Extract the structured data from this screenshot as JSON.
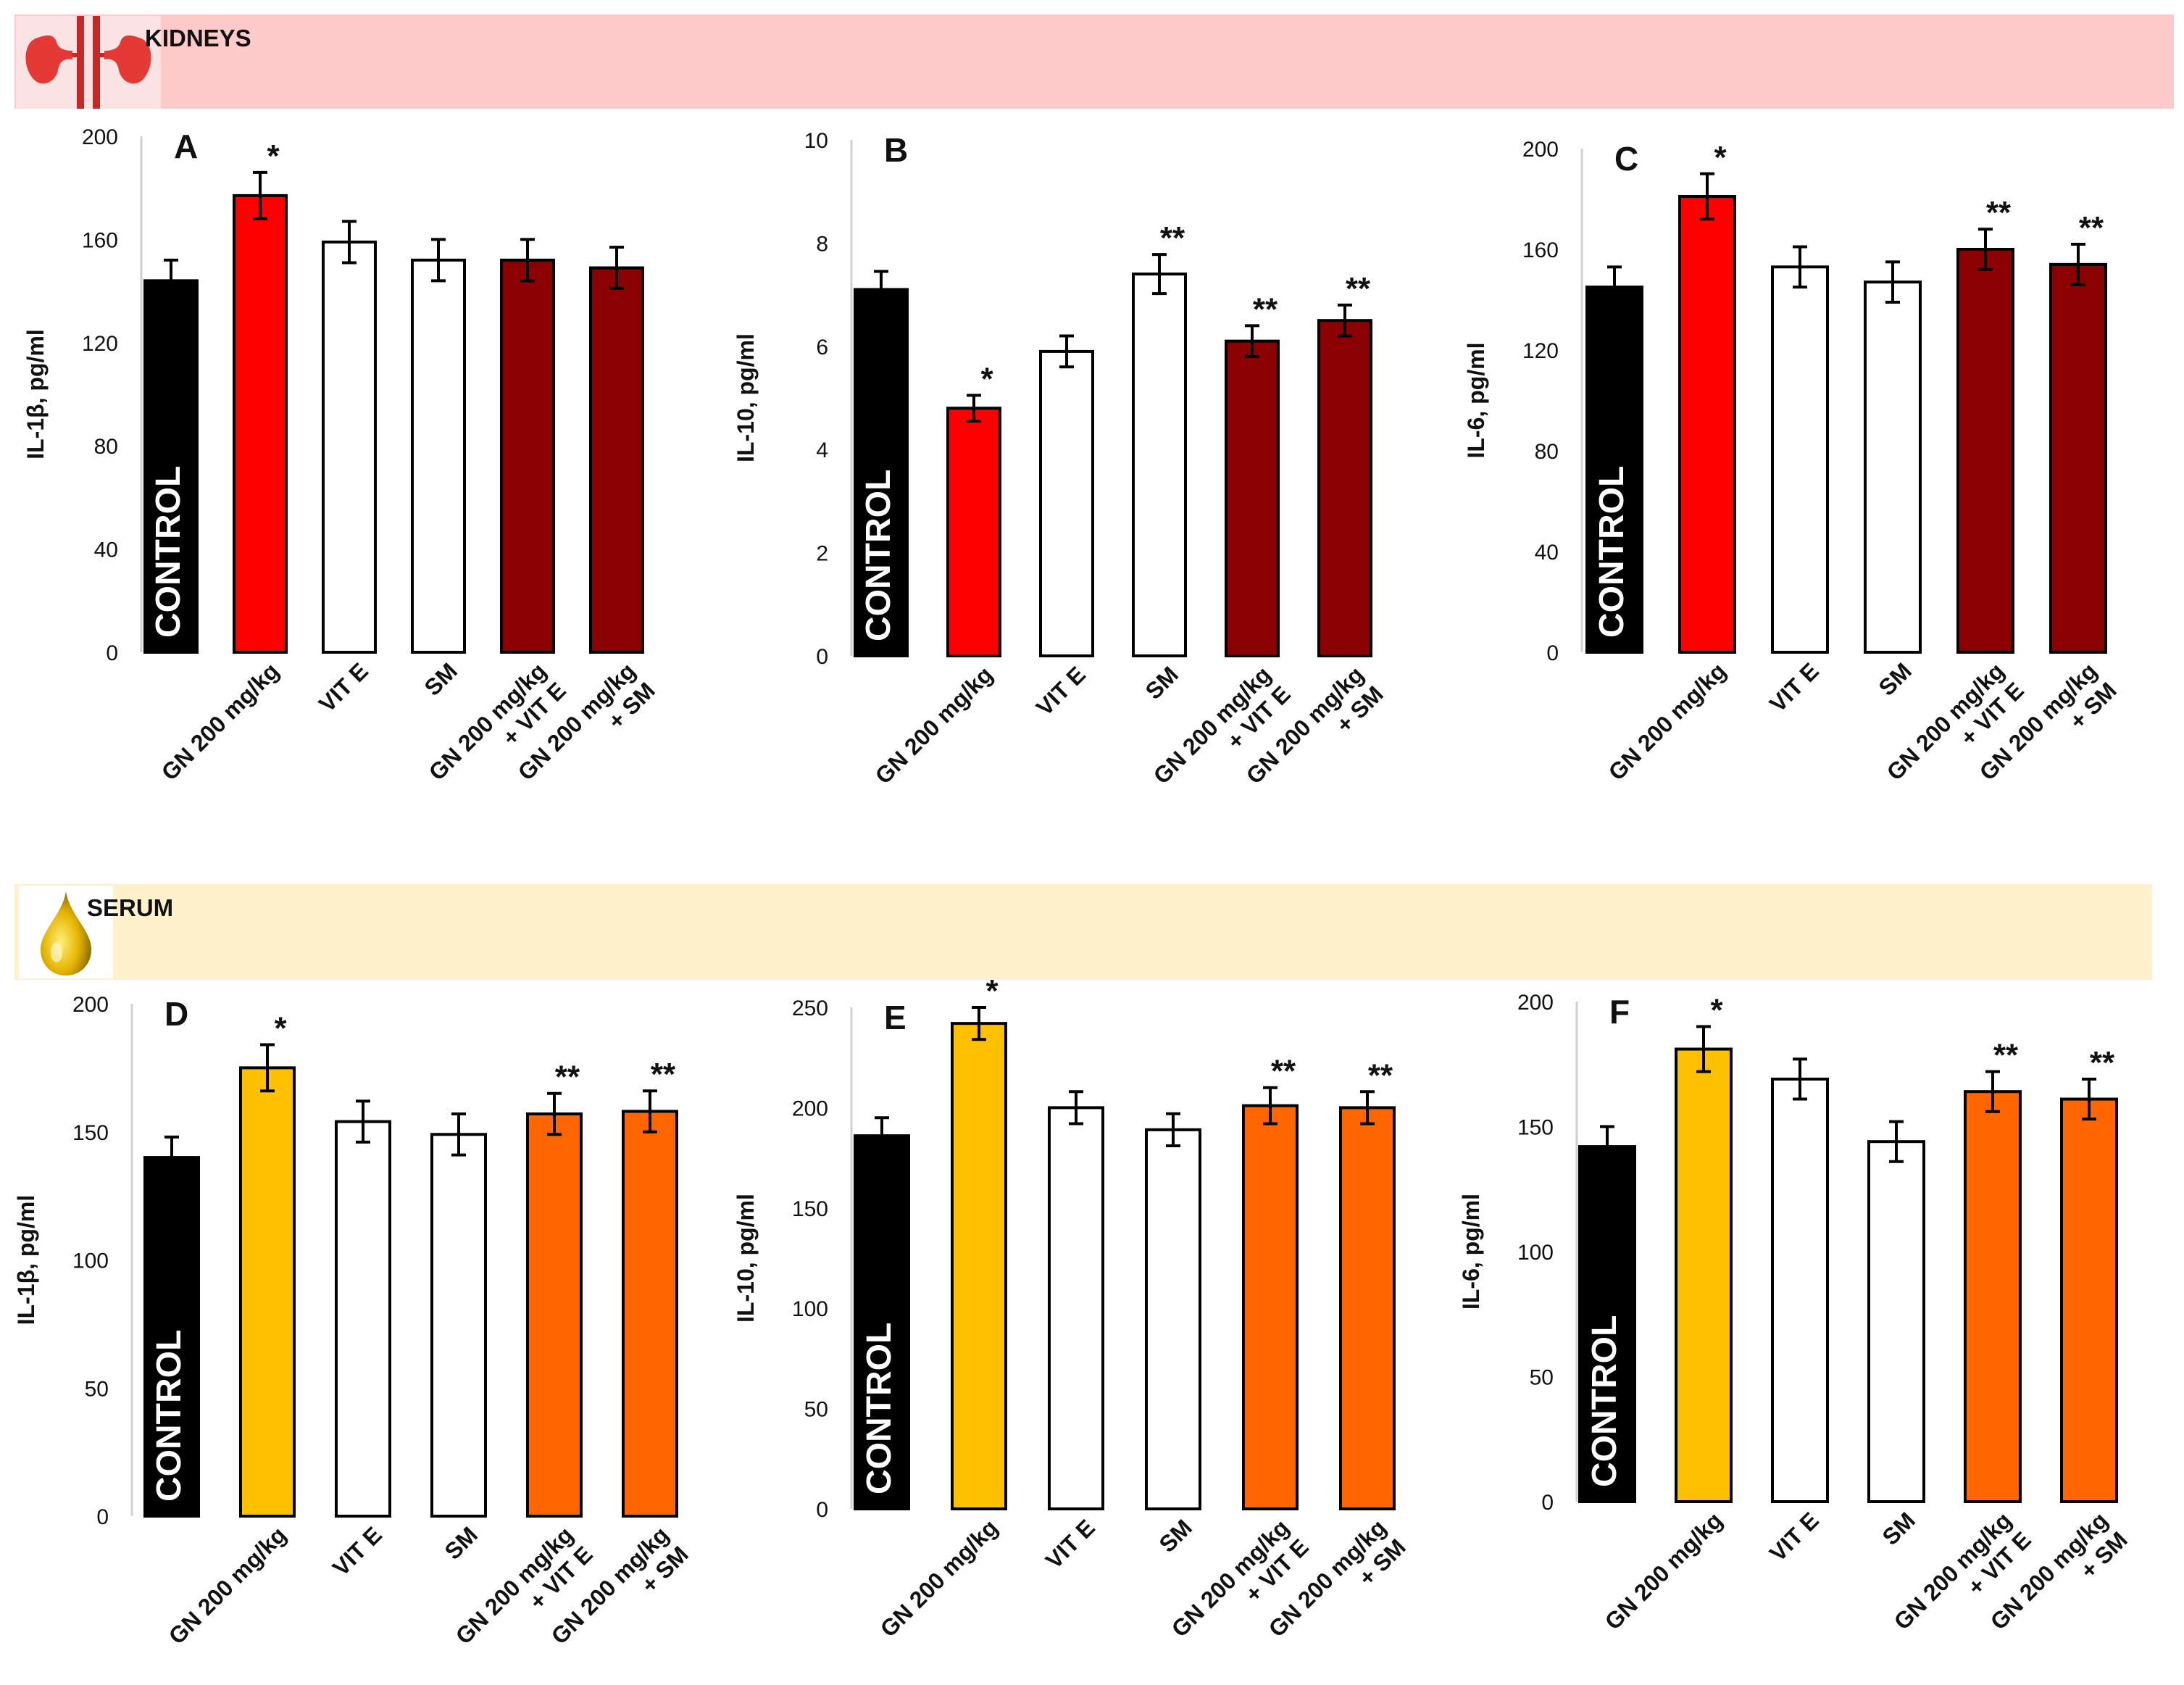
{
  "sections": {
    "kidneys": {
      "label": "KIDNEYS",
      "icon": "kidney-icon",
      "color": "#ffcaca"
    },
    "serum": {
      "label": "SERUM",
      "icon": "serum-drop-icon",
      "color": "#fff1cc"
    }
  },
  "categories": [
    "CONTROL",
    "GN 200 mg/kg",
    "VIT E",
    "SM",
    "GN 200 mg/kg\n+ VIT E",
    "GN 200 mg/kg\n+ SM"
  ],
  "colors": {
    "control": "#000000",
    "kidney_gn": "#ff0000",
    "kidney_combo": "#8b0000",
    "serum_gn": "#ffc000",
    "serum_combo": "#ff6600",
    "plain": "#ffffff"
  },
  "chart_data": [
    {
      "panel": "A",
      "section": "kidneys",
      "type": "bar",
      "ylabel": "IL-1β, pg/ml",
      "ylim": [
        0,
        200
      ],
      "yticks": [
        0,
        40,
        80,
        120,
        160,
        200
      ],
      "values": [
        144,
        177,
        159,
        152,
        152,
        149
      ],
      "errors": [
        8,
        9,
        8,
        8,
        8,
        8
      ],
      "significance": [
        "",
        "*",
        "",
        "",
        "",
        ""
      ],
      "colors": [
        "#000000",
        "#ff0000",
        "#ffffff",
        "#ffffff",
        "#8b0000",
        "#8b0000"
      ]
    },
    {
      "panel": "B",
      "section": "kidneys",
      "type": "bar",
      "ylabel": "IL-10, pg/ml",
      "ylim": [
        0,
        10
      ],
      "yticks": [
        0,
        2,
        4,
        6,
        8,
        10
      ],
      "values": [
        7.1,
        4.8,
        5.9,
        7.4,
        6.1,
        6.5
      ],
      "errors": [
        0.35,
        0.25,
        0.3,
        0.38,
        0.3,
        0.3
      ],
      "significance": [
        "",
        "*",
        "",
        "**",
        "**",
        "**"
      ],
      "colors": [
        "#000000",
        "#ff0000",
        "#ffffff",
        "#ffffff",
        "#8b0000",
        "#8b0000"
      ]
    },
    {
      "panel": "C",
      "section": "kidneys",
      "type": "bar",
      "ylabel": "IL-6, pg/ml",
      "ylim": [
        0,
        200
      ],
      "yticks": [
        0,
        40,
        80,
        120,
        160,
        200
      ],
      "values": [
        145,
        181,
        153,
        147,
        160,
        154
      ],
      "errors": [
        8,
        9,
        8,
        8,
        8,
        8
      ],
      "significance": [
        "",
        "*",
        "",
        "",
        "**",
        "**"
      ],
      "colors": [
        "#000000",
        "#ff0000",
        "#ffffff",
        "#ffffff",
        "#8b0000",
        "#8b0000"
      ]
    },
    {
      "panel": "D",
      "section": "serum",
      "type": "bar",
      "ylabel": "IL-1β, pg/ml",
      "ylim": [
        0,
        200
      ],
      "yticks": [
        0,
        50,
        100,
        150,
        200
      ],
      "values": [
        140,
        175,
        154,
        149,
        157,
        158
      ],
      "errors": [
        8,
        9,
        8,
        8,
        8,
        8
      ],
      "significance": [
        "",
        "*",
        "",
        "",
        "**",
        "**"
      ],
      "colors": [
        "#000000",
        "#ffc000",
        "#ffffff",
        "#ffffff",
        "#ff6600",
        "#ff6600"
      ]
    },
    {
      "panel": "E",
      "section": "serum",
      "type": "bar",
      "ylabel": "IL-10, pg/ml",
      "ylim": [
        0,
        250
      ],
      "yticks": [
        0,
        50,
        100,
        150,
        200,
        250
      ],
      "values": [
        186,
        242,
        200,
        189,
        201,
        200
      ],
      "errors": [
        9,
        8,
        8,
        8,
        9,
        8
      ],
      "significance": [
        "",
        "*",
        "",
        "",
        "**",
        "**"
      ],
      "colors": [
        "#000000",
        "#ffc000",
        "#ffffff",
        "#ffffff",
        "#ff6600",
        "#ff6600"
      ]
    },
    {
      "panel": "F",
      "section": "serum",
      "type": "bar",
      "ylabel": "IL-6, pg/ml",
      "ylim": [
        0,
        200
      ],
      "yticks": [
        0,
        50,
        100,
        150,
        200
      ],
      "values": [
        142,
        181,
        169,
        144,
        164,
        161
      ],
      "errors": [
        8,
        9,
        8,
        8,
        8,
        8
      ],
      "significance": [
        "",
        "*",
        "",
        "",
        "**",
        "**"
      ],
      "colors": [
        "#000000",
        "#ffc000",
        "#ffffff",
        "#ffffff",
        "#ff6600",
        "#ff6600"
      ]
    }
  ]
}
